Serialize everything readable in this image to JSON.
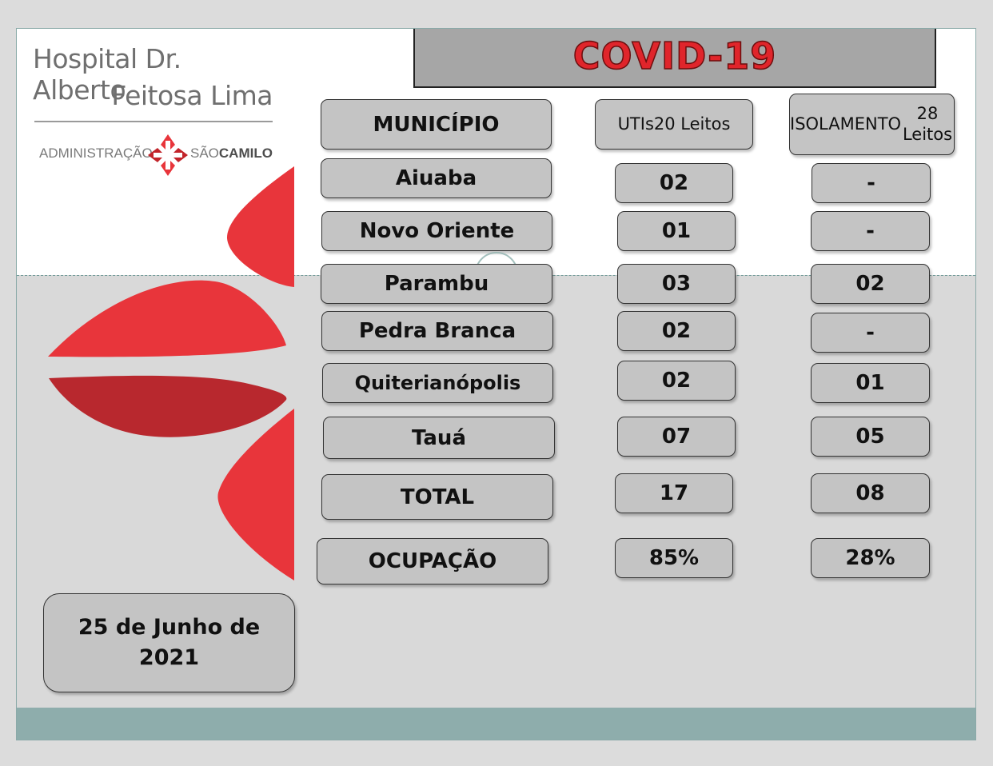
{
  "logo": {
    "line1": "Hospital Dr. Alberto",
    "line2": "Feitosa Lima",
    "admin": "ADMINISTRAÇÃO",
    "sao": "SÃO",
    "camilo": "CAMILO"
  },
  "title": "COVID-19",
  "headers": {
    "municipio": "MUNICÍPIO",
    "utis_line1": "UTIs",
    "utis_line2": "20 Leitos",
    "iso_line1": "ISOLAMENTO",
    "iso_line2": "28 Leitos"
  },
  "rows": [
    {
      "municipio": "Aiuaba",
      "utis": "02",
      "isolamento": "-"
    },
    {
      "municipio": "Novo Oriente",
      "utis": "01",
      "isolamento": "-"
    },
    {
      "municipio": "Parambu",
      "utis": "03",
      "isolamento": "02"
    },
    {
      "municipio": "Pedra Branca",
      "utis": "02",
      "isolamento": "-"
    },
    {
      "municipio": "Quiterianópolis",
      "utis": "02",
      "isolamento": "01"
    },
    {
      "municipio": "Tauá",
      "utis": "07",
      "isolamento": "05"
    }
  ],
  "total": {
    "label": "TOTAL",
    "utis": "17",
    "isolamento": "08"
  },
  "ocupacao": {
    "label": "OCUPAÇÃO",
    "utis": "85%",
    "isolamento": "28%"
  },
  "date": "25 de Junho de 2021",
  "colors": {
    "title_red": "#e0252b",
    "petal_red": "#e8353b",
    "petal_dark": "#b8282e",
    "cell_gray": "#c4c4c4",
    "footer_teal": "#8eadac"
  }
}
